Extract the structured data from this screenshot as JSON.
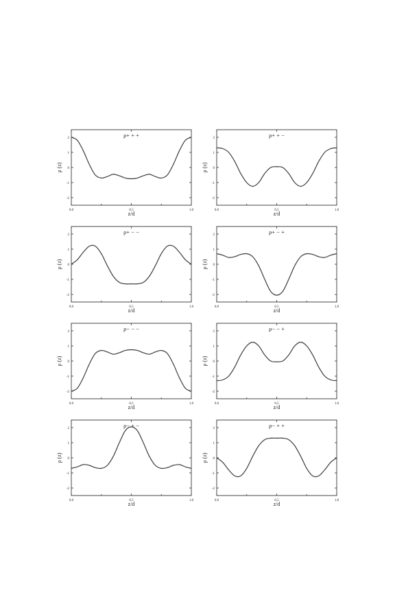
{
  "chart_data": [
    {
      "type": "line",
      "title": "ρ+ + +",
      "xlabel": "z/d",
      "ylabel": "ρ (z)",
      "xlim": [
        0.0,
        1.0
      ],
      "ylim": [
        -2.5,
        2.5
      ],
      "xticks": [
        "0.0",
        "0.5",
        "1.0"
      ],
      "yticks": [
        "2",
        "1",
        "0",
        "-1",
        "-2"
      ],
      "series": [
        {
          "x": [
            0,
            0.05,
            0.1,
            0.15,
            0.2,
            0.25,
            0.3,
            0.35,
            0.4,
            0.45,
            0.5,
            0.55,
            0.6,
            0.65,
            0.7,
            0.75,
            0.8,
            0.85,
            0.9,
            0.95,
            1.0
          ],
          "y": [
            2.0,
            1.8,
            1.1,
            0.2,
            -0.5,
            -0.7,
            -0.6,
            -0.45,
            -0.55,
            -0.7,
            -0.75,
            -0.7,
            -0.55,
            -0.45,
            -0.6,
            -0.7,
            -0.5,
            0.2,
            1.1,
            1.8,
            2.0
          ]
        }
      ]
    },
    {
      "type": "line",
      "title": "ρ+ + −",
      "xlabel": "z/d",
      "ylabel": "ρ (z)",
      "xlim": [
        0.0,
        1.0
      ],
      "ylim": [
        -2.5,
        2.5
      ],
      "xticks": [
        "0.0",
        "0.5",
        "1.0"
      ],
      "yticks": [
        "2",
        "1",
        "0",
        "-1",
        "-2"
      ],
      "series": [
        {
          "x": [
            0,
            0.05,
            0.1,
            0.15,
            0.2,
            0.25,
            0.3,
            0.35,
            0.4,
            0.45,
            0.5,
            0.55,
            0.6,
            0.65,
            0.7,
            0.75,
            0.8,
            0.85,
            0.9,
            0.95,
            1.0
          ],
          "y": [
            1.3,
            1.25,
            1.0,
            0.4,
            -0.4,
            -1.0,
            -1.25,
            -1.0,
            -0.4,
            0.0,
            0.05,
            0.0,
            -0.4,
            -1.0,
            -1.25,
            -1.0,
            -0.4,
            0.4,
            1.0,
            1.25,
            1.3
          ]
        }
      ]
    },
    {
      "type": "line",
      "title": "ρ+ − −",
      "xlabel": "z/d",
      "ylabel": "ρ (z)",
      "xlim": [
        0.0,
        1.0
      ],
      "ylim": [
        -2.5,
        2.5
      ],
      "xticks": [
        "0.0",
        "0.5",
        "1.0"
      ],
      "yticks": [
        "2",
        "1",
        "0",
        "-1",
        "-2"
      ],
      "series": [
        {
          "x": [
            0,
            0.05,
            0.1,
            0.15,
            0.2,
            0.25,
            0.3,
            0.35,
            0.4,
            0.45,
            0.5,
            0.55,
            0.6,
            0.65,
            0.7,
            0.75,
            0.8,
            0.85,
            0.9,
            0.95,
            1.0
          ],
          "y": [
            0.0,
            0.3,
            0.8,
            1.2,
            1.2,
            0.7,
            -0.1,
            -0.8,
            -1.2,
            -1.3,
            -1.3,
            -1.3,
            -1.2,
            -0.8,
            -0.1,
            0.7,
            1.2,
            1.2,
            0.8,
            0.3,
            0.0
          ]
        }
      ]
    },
    {
      "type": "line",
      "title": "ρ+ − +",
      "xlabel": "z/d",
      "ylabel": "ρ (z)",
      "xlim": [
        0.0,
        1.0
      ],
      "ylim": [
        -2.5,
        2.5
      ],
      "xticks": [
        "0.0",
        "0.5",
        "1.0"
      ],
      "yticks": [
        "2",
        "1",
        "0",
        "-1",
        "-2"
      ],
      "series": [
        {
          "x": [
            0,
            0.05,
            0.1,
            0.15,
            0.2,
            0.25,
            0.3,
            0.35,
            0.4,
            0.45,
            0.5,
            0.55,
            0.6,
            0.65,
            0.7,
            0.75,
            0.8,
            0.85,
            0.9,
            0.95,
            1.0
          ],
          "y": [
            0.7,
            0.6,
            0.45,
            0.5,
            0.65,
            0.7,
            0.5,
            -0.1,
            -1.0,
            -1.8,
            -2.05,
            -1.8,
            -1.0,
            -0.1,
            0.5,
            0.7,
            0.65,
            0.5,
            0.45,
            0.6,
            0.7
          ]
        }
      ]
    },
    {
      "type": "line",
      "title": "ρ− − −",
      "xlabel": "z/d",
      "ylabel": "ρ (z)",
      "xlim": [
        0.0,
        1.0
      ],
      "ylim": [
        -2.5,
        2.5
      ],
      "xticks": [
        "0.0",
        "0.5",
        "1.0"
      ],
      "yticks": [
        "2",
        "1",
        "0",
        "-1",
        "-2"
      ],
      "series": [
        {
          "x": [
            0,
            0.05,
            0.1,
            0.15,
            0.2,
            0.25,
            0.3,
            0.35,
            0.4,
            0.45,
            0.5,
            0.55,
            0.6,
            0.65,
            0.7,
            0.75,
            0.8,
            0.85,
            0.9,
            0.95,
            1.0
          ],
          "y": [
            -2.0,
            -1.8,
            -1.1,
            -0.2,
            0.5,
            0.7,
            0.6,
            0.45,
            0.55,
            0.7,
            0.75,
            0.7,
            0.55,
            0.45,
            0.6,
            0.7,
            0.5,
            -0.2,
            -1.1,
            -1.8,
            -2.0
          ]
        }
      ]
    },
    {
      "type": "line",
      "title": "ρ− − +",
      "xlabel": "z/d",
      "ylabel": "ρ (z)",
      "xlim": [
        0.0,
        1.0
      ],
      "ylim": [
        -2.5,
        2.5
      ],
      "xticks": [
        "0.0",
        "0.5",
        "1.0"
      ],
      "yticks": [
        "2",
        "1",
        "0",
        "-1",
        "-2"
      ],
      "series": [
        {
          "x": [
            0,
            0.05,
            0.1,
            0.15,
            0.2,
            0.25,
            0.3,
            0.35,
            0.4,
            0.45,
            0.5,
            0.55,
            0.6,
            0.65,
            0.7,
            0.75,
            0.8,
            0.85,
            0.9,
            0.95,
            1.0
          ],
          "y": [
            -1.3,
            -1.25,
            -1.0,
            -0.4,
            0.4,
            1.0,
            1.25,
            1.0,
            0.4,
            0.0,
            -0.05,
            0.0,
            0.4,
            1.0,
            1.25,
            1.0,
            0.4,
            -0.4,
            -1.0,
            -1.25,
            -1.3
          ]
        }
      ]
    },
    {
      "type": "line",
      "title": "ρ− + −",
      "xlabel": "z/d",
      "ylabel": "ρ (z)",
      "xlim": [
        0.0,
        1.0
      ],
      "ylim": [
        -2.5,
        2.5
      ],
      "xticks": [
        "0.0",
        "0.5",
        "1.0"
      ],
      "yticks": [
        "2",
        "1",
        "0",
        "-1",
        "-2"
      ],
      "series": [
        {
          "x": [
            0,
            0.05,
            0.1,
            0.15,
            0.2,
            0.25,
            0.3,
            0.35,
            0.4,
            0.45,
            0.5,
            0.55,
            0.6,
            0.65,
            0.7,
            0.75,
            0.8,
            0.85,
            0.9,
            0.95,
            1.0
          ],
          "y": [
            -0.7,
            -0.6,
            -0.45,
            -0.5,
            -0.65,
            -0.7,
            -0.5,
            0.1,
            1.0,
            1.8,
            2.05,
            1.8,
            1.0,
            0.1,
            -0.5,
            -0.7,
            -0.65,
            -0.5,
            -0.45,
            -0.6,
            -0.7
          ]
        }
      ]
    },
    {
      "type": "line",
      "title": "ρ− + +",
      "xlabel": "z/d",
      "ylabel": "ρ (z)",
      "xlim": [
        0.0,
        1.0
      ],
      "ylim": [
        -2.5,
        2.5
      ],
      "xticks": [
        "0.0",
        "0.5",
        "1.0"
      ],
      "yticks": [
        "2",
        "1",
        "0",
        "-1",
        "-2"
      ],
      "series": [
        {
          "x": [
            0,
            0.05,
            0.1,
            0.15,
            0.2,
            0.25,
            0.3,
            0.35,
            0.4,
            0.45,
            0.5,
            0.55,
            0.6,
            0.65,
            0.7,
            0.75,
            0.8,
            0.85,
            0.9,
            0.95,
            1.0
          ],
          "y": [
            0.0,
            -0.3,
            -0.8,
            -1.2,
            -1.2,
            -0.7,
            0.1,
            0.8,
            1.2,
            1.3,
            1.3,
            1.3,
            1.2,
            0.8,
            0.1,
            -0.7,
            -1.2,
            -1.2,
            -0.8,
            -0.3,
            0.0
          ]
        }
      ]
    }
  ]
}
